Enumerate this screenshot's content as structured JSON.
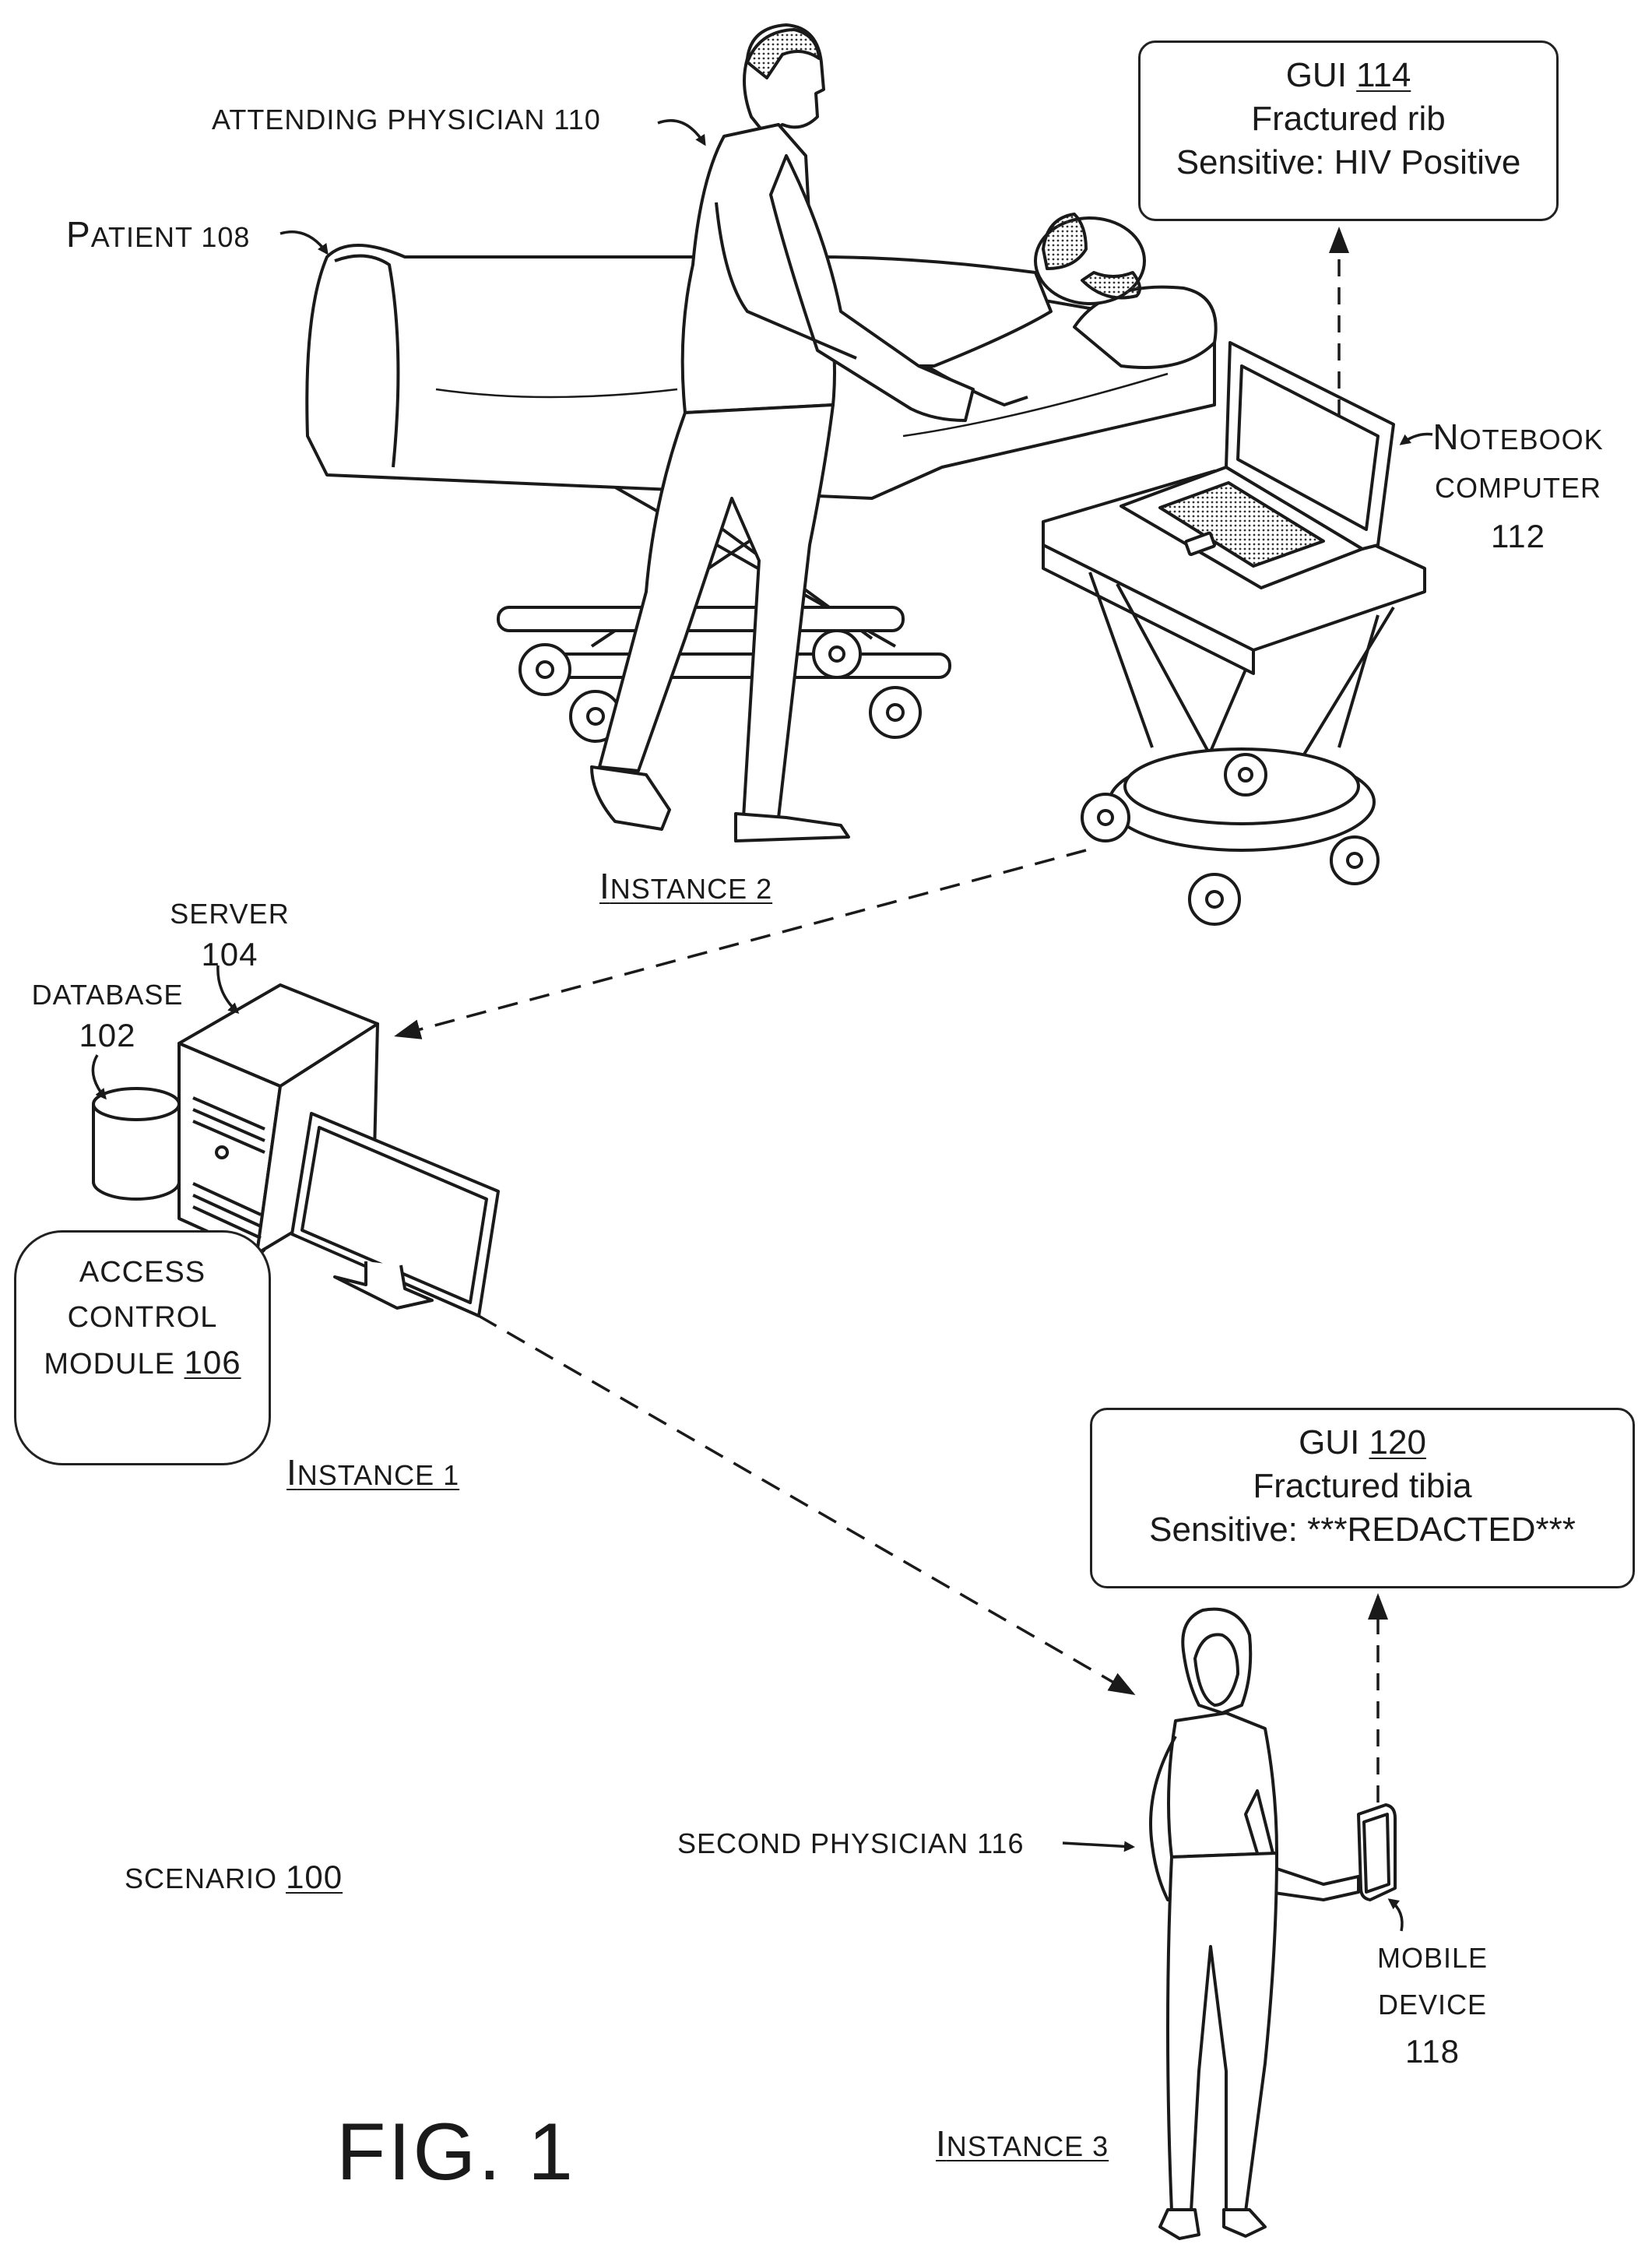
{
  "figure": {
    "title": "FIG. 1"
  },
  "scenario": {
    "label": "SCENARIO",
    "num": "100"
  },
  "instances": {
    "one": {
      "first": "I",
      "rest": "NSTANCE 1"
    },
    "two": {
      "first": "I",
      "rest": "NSTANCE 2"
    },
    "three": {
      "first": "I",
      "rest": "NSTANCE 3"
    }
  },
  "labels": {
    "attending_physician": "ATTENDING PHYSICIAN 110",
    "patient_first": "P",
    "patient_rest": "ATIENT 108",
    "notebook_first": "N",
    "notebook_rest": "OTEBOOK",
    "notebook_line2": "COMPUTER",
    "notebook_num": "112",
    "server": "SERVER",
    "server_num": "104",
    "database": "DATABASE",
    "database_num": "102",
    "second_physician": "SECOND PHYSICIAN 116",
    "mobile_line1": "MOBILE",
    "mobile_line2": "DEVICE",
    "mobile_num": "118"
  },
  "access_control": {
    "line1": "ACCESS",
    "line2": "CONTROL",
    "line3_text": "MODULE ",
    "line3_num": "106"
  },
  "gui_114": {
    "prefix": "GUI ",
    "num": "114",
    "line2": "Fractured rib",
    "line3": "Sensitive: HIV Positive"
  },
  "gui_120": {
    "prefix": "GUI ",
    "num": "120",
    "line2": "Fractured tibia",
    "line3": "Sensitive: ***REDACTED***"
  },
  "colors": {
    "ink": "#1a1a1a",
    "background": "#ffffff"
  }
}
